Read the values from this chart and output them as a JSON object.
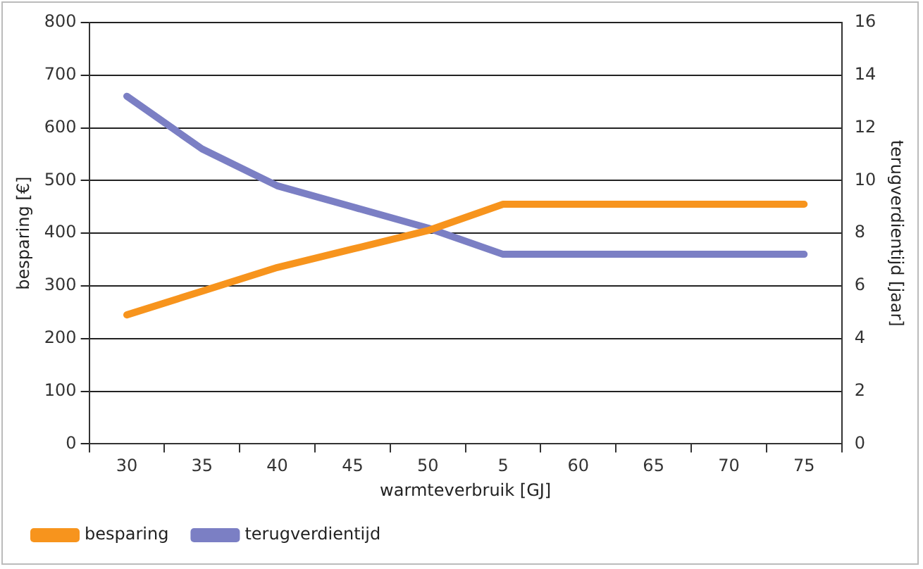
{
  "chart_data": {
    "type": "line",
    "xlabel": "warmteverbruik [GJ]",
    "ylabel": "besparing [€]",
    "y2label": "terugverdientijd [jaar]",
    "categories": [
      "30",
      "35",
      "40",
      "45",
      "50",
      "5",
      "60",
      "65",
      "70",
      "75"
    ],
    "series": [
      {
        "name": "besparing",
        "color": "#f7941d",
        "values": [
          245,
          290,
          335,
          370,
          405,
          455,
          455,
          455,
          455,
          455
        ]
      },
      {
        "name": "terugverdientijd",
        "color": "#7b7fc4",
        "axis": "y2",
        "values": [
          13.2,
          11.2,
          9.8,
          9.0,
          8.2,
          7.2,
          7.2,
          7.2,
          7.2,
          7.2
        ]
      }
    ],
    "ylim": [
      0,
      800
    ],
    "yticks": [
      0,
      100,
      200,
      300,
      400,
      500,
      600,
      700,
      800
    ],
    "y2lim": [
      0,
      16
    ],
    "y2ticks": [
      0,
      2,
      4,
      6,
      8,
      10,
      12,
      14,
      16
    ],
    "grid": "y",
    "legend": "bottom left",
    "marker": "none",
    "line_style": "solid"
  }
}
